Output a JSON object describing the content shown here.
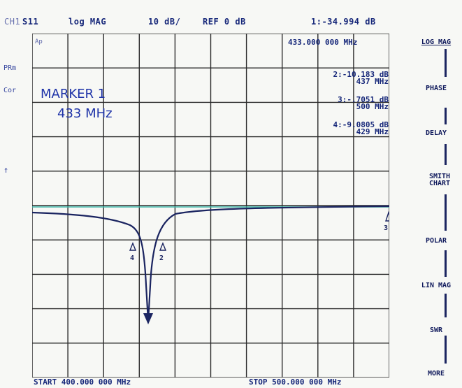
{
  "header": {
    "channel": "CH1",
    "param": "S11",
    "format": "log MAG",
    "scale": "10 dB/",
    "ref": "REF 0 dB",
    "marker1_readout": "1:-34.994 dB"
  },
  "side_labels": {
    "ap": "Ap",
    "prm": "PRm",
    "cor": "Cor",
    "ref_arrow": "↑"
  },
  "markers": {
    "m1_freq_readout": "433.000 000 MHz",
    "list": [
      {
        "label": "2:-10.183 dB",
        "freq": "437 MHz"
      },
      {
        "label": "3:-.7051 dB",
        "freq": "500 MHz"
      },
      {
        "label": "4:-9.0805 dB",
        "freq": "429 MHz"
      }
    ]
  },
  "marker_panel": {
    "title": "MARKER 1",
    "value": "433 MHz"
  },
  "trace_markers": {
    "m2": "2",
    "m3": "3",
    "m4": "4"
  },
  "softkeys": [
    {
      "label": "LOG MAG",
      "active": true
    },
    {
      "label": "PHASE",
      "active": false
    },
    {
      "label": "DELAY",
      "active": false
    },
    {
      "label": "SMITH CHART",
      "active": false
    },
    {
      "label": "POLAR",
      "active": false
    },
    {
      "label": "LIN MAG",
      "active": false
    },
    {
      "label": "SWR",
      "active": false
    },
    {
      "label": "MORE",
      "active": false
    }
  ],
  "footer": {
    "start": "START  400.000 000 MHz",
    "stop": "STOP  500.000 000 MHz"
  },
  "colors": {
    "trace": "#1a2460",
    "grid": "#2b2b2b",
    "ref_line": "#3cb6a8",
    "text": "#17287a"
  }
}
